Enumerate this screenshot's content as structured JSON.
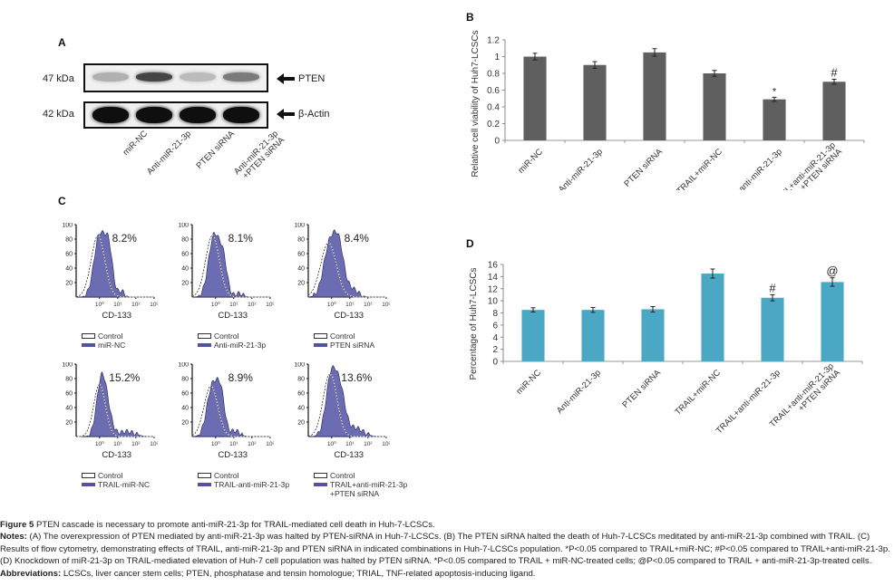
{
  "panel_a": {
    "letter": "A",
    "rows": [
      {
        "kda": "47 kDa",
        "label": "PTEN",
        "band_intensity": [
          0.25,
          0.75,
          0.2,
          0.5
        ]
      },
      {
        "kda": "42 kDa",
        "label": "β-Actin",
        "band_intensity": [
          1.0,
          1.0,
          1.0,
          1.0
        ]
      }
    ],
    "lanes": [
      "miR-NC",
      "Anti-miR-21-3p",
      "PTEN siRNA",
      "Anti-miR-21-3p\n+PTEN siRNA"
    ],
    "lane_lines": [
      [
        "miR-NC"
      ],
      [
        "Anti-miR-21-3p"
      ],
      [
        "PTEN siRNA"
      ],
      [
        "Anti-miR-21-3p",
        "+PTEN siRNA"
      ]
    ],
    "arrow_icon": "left-arrow-icon"
  },
  "panel_c": {
    "letter": "C",
    "xlabel": "CD-133",
    "yticks": [
      "20",
      "40",
      "60",
      "80",
      "100"
    ],
    "xticks": [
      "10⁰",
      "10¹",
      "10²",
      "10³"
    ],
    "control_label": "Control",
    "plots": [
      {
        "percent": "8.2%",
        "treatment": "miR-NC"
      },
      {
        "percent": "8.1%",
        "treatment": "Anti-miR-21-3p"
      },
      {
        "percent": "8.4%",
        "treatment": "PTEN siRNA"
      },
      {
        "percent": "15.2%",
        "treatment": "TRAIL-miR-NC"
      },
      {
        "percent": "8.9%",
        "treatment": "TRAIL-anti-miR-21-3p"
      },
      {
        "percent": "13.6%",
        "treatment": "TRAIL+anti-miR-21-3p\n+PTEN siRNA"
      }
    ],
    "colors": {
      "fill": "#5c5cab",
      "outline": "#1f1f5e"
    }
  },
  "chart_data": [
    {
      "id": "B",
      "type": "bar",
      "title": "",
      "xlabel": "",
      "ylabel": "Relative cell viability of Huh7-LCSCs",
      "categories": [
        "miR-NC",
        "Anti-miR-21-3p",
        "PTEN siRNA",
        "TRAIL+miR-NC",
        "TRAIL+anti-miR-21-3p",
        "TRAIL+anti-miR-21-3p\n+PTEN siRNA"
      ],
      "values": [
        1.0,
        0.9,
        1.05,
        0.8,
        0.49,
        0.7
      ],
      "errors": [
        0.04,
        0.04,
        0.045,
        0.035,
        0.025,
        0.03
      ],
      "annotations": [
        "",
        "",
        "",
        "",
        "*",
        "#"
      ],
      "ylim": [
        0,
        1.2
      ],
      "yticks": [
        "0",
        "0.2",
        "0.4",
        "0.6",
        "0.8",
        "1",
        "1.2"
      ],
      "ytick_values": [
        0,
        0.2,
        0.4,
        0.6,
        0.8,
        1.0,
        1.2
      ],
      "grid": false,
      "color": "#5f5f5f"
    },
    {
      "id": "D",
      "type": "bar",
      "title": "",
      "xlabel": "",
      "ylabel": "Percentage of Huh7-LCSCs",
      "categories": [
        "miR-NC",
        "Anti-miR-21-3p",
        "PTEN siRNA",
        "TRAIL+miR-NC",
        "TRAIL+anti-miR-21-3p",
        "TRAIL+anti-miR-21-3p\n+PTEN siRNA"
      ],
      "values": [
        8.5,
        8.5,
        8.6,
        14.5,
        10.5,
        13.1
      ],
      "errors": [
        0.35,
        0.4,
        0.45,
        0.75,
        0.5,
        0.7
      ],
      "annotations": [
        "",
        "",
        "",
        "",
        "#",
        "@"
      ],
      "ylim": [
        0,
        16
      ],
      "yticks": [
        "0",
        "2",
        "4",
        "6",
        "8",
        "10",
        "12",
        "14",
        "16"
      ],
      "ytick_values": [
        0,
        2,
        4,
        6,
        8,
        10,
        12,
        14,
        16
      ],
      "grid": false,
      "color": "#4aa8c4"
    }
  ],
  "panel_b": {
    "letter": "B"
  },
  "panel_d": {
    "letter": "D"
  },
  "caption": {
    "figure_label": "Figure 5",
    "figure_title": " PTEN cascade is necessary to promote anti-miR-21-3p for TRAIL-mediated cell death in Huh-7-LCSCs.",
    "notes_label": "Notes:",
    "notes_text": " (A) The overexpression of PTEN mediated by anti-miR-21-3p was halted by PTEN-siRNA in Huh-7-LCSCs. (B) The PTEN siRNA halted the death of Huh-7-LCSCs meditated by anti-miR-21-3p combined with TRAIL. (C) Results of flow cytometry, demonstrating effects of TRAIL, anti-miR-21-3p and PTEN siRNA in indicated combinations in Huh-7-LCSCs population. *P<0.05 compared to TRAIL+miR-NC; #P<0.05 compared to TRAIL+anti-miR-21-3p. (D) Knockdown of miR-21-3p on TRAIL-mediated elevation of Huh-7 cell population was halted by PTEN siRNA. *P<0.05 compared to TRAIL + miR-NC-treated cells; @P<0.05 compared to TRAIL + anti-miR-21-3p-treated cells.",
    "abbrev_label": "Abbreviations:",
    "abbrev_text": " LCSCs, liver cancer stem cells; PTEN, phosphatase and tensin homologue; TRIAL, TNF-related apoptosis-inducing ligand."
  }
}
